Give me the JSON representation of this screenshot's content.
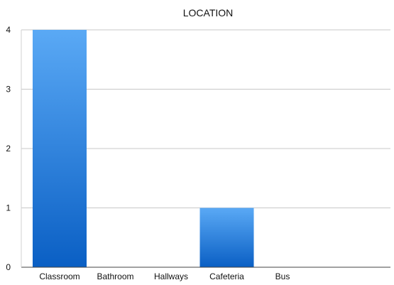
{
  "chart_data": {
    "type": "bar",
    "title": "LOCATION",
    "categories": [
      "Classroom",
      "Bathroom",
      "Hallways",
      "Cafeteria",
      "Bus"
    ],
    "values": [
      4,
      0,
      0,
      1,
      0
    ],
    "ylim": [
      0,
      4
    ],
    "yticks": [
      "0",
      "1",
      "2",
      "3",
      "4"
    ],
    "grid": true,
    "legend": "none",
    "bar_color_top": "#5aa9f5",
    "bar_color_bottom": "#0a5fc4",
    "grid_color": "#c8c8c8"
  }
}
